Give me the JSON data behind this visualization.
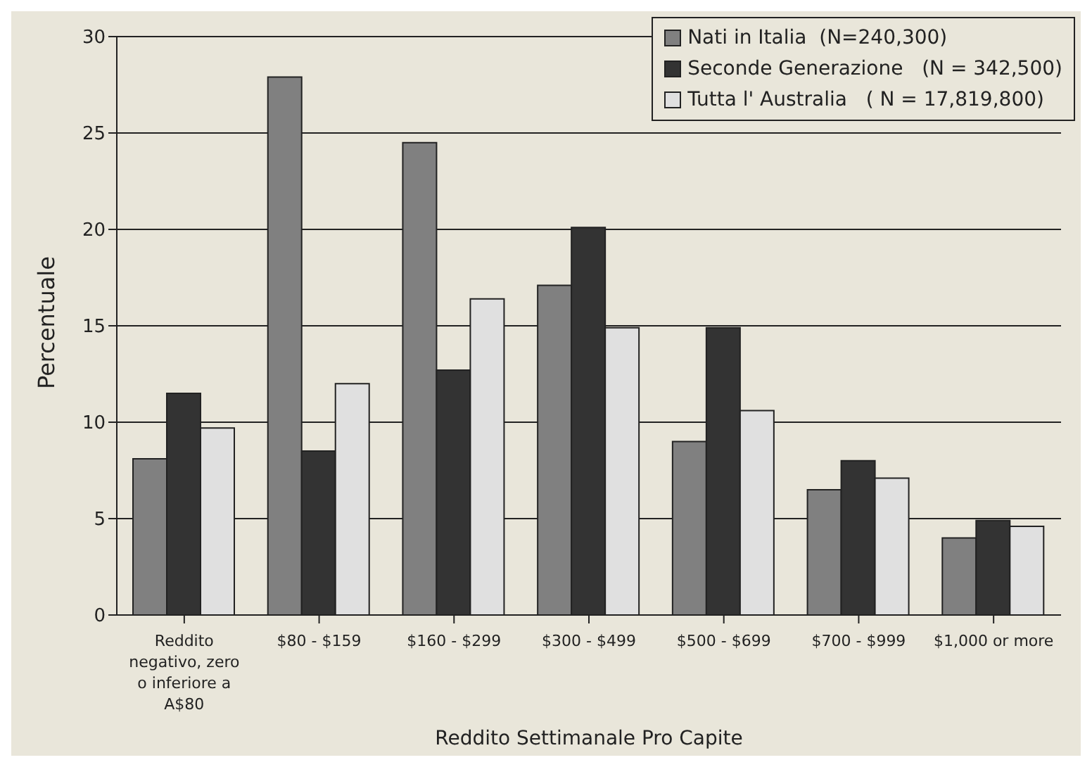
{
  "chart_data": {
    "type": "bar",
    "xlabel": "Reddito Settimanale Pro Capite",
    "ylabel": "Percentuale",
    "categories": [
      "Reddito negativo, zero o inferiore a A$80",
      "$80 - $159",
      "$160 - $299",
      "$300 - $499",
      "$500 - $699",
      "$700 - $999",
      "$1,000 or more"
    ],
    "series": [
      {
        "name": "Nati in Italia  (N=240,300)",
        "color": "#808080",
        "values": [
          8.1,
          27.9,
          24.5,
          17.1,
          9.0,
          6.5,
          4.0
        ]
      },
      {
        "name": "Seconde Generazione   (N = 342,500)",
        "color": "#333333",
        "values": [
          11.5,
          8.5,
          12.7,
          20.1,
          14.9,
          8.0,
          4.9
        ]
      },
      {
        "name": "Tutta l' Australia   ( N = 17,819,800)",
        "color": "#e0e0e0",
        "values": [
          9.7,
          12.0,
          16.4,
          14.9,
          10.6,
          7.1,
          4.6
        ]
      }
    ],
    "ylim": [
      0,
      30
    ],
    "yticks": [
      0,
      5,
      10,
      15,
      20,
      25,
      30
    ],
    "grid": "y",
    "legend": "top right"
  }
}
